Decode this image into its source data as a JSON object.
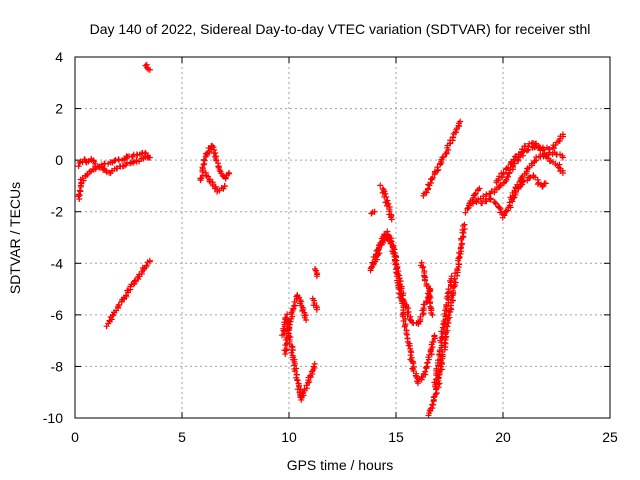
{
  "chart_data": {
    "type": "scatter",
    "title": "Day 140 of 2022, Sidereal Day-to-day VTEC variation (SDTVAR) for receiver sthl",
    "xlabel": "GPS time / hours",
    "ylabel": "SDTVAR / TECUs",
    "xlim": [
      0,
      25
    ],
    "ylim": [
      -10,
      4
    ],
    "xticks": [
      "0",
      "5",
      "10",
      "15",
      "20",
      "25"
    ],
    "yticks": [
      "-10",
      "-8",
      "-6",
      "-4",
      "-2",
      "0",
      "2",
      "4"
    ],
    "grid": true,
    "marker": "+",
    "marker_color": "#ff0000",
    "segments": [
      {
        "points": [
          [
            0.2,
            -1.5
          ],
          [
            0.3,
            -0.8
          ],
          [
            0.5,
            -0.6
          ],
          [
            0.8,
            -0.4
          ],
          [
            1.0,
            -0.3
          ],
          [
            1.3,
            -0.2
          ],
          [
            1.6,
            -0.1
          ],
          [
            2.0,
            0.0
          ],
          [
            2.4,
            0.1
          ],
          [
            2.8,
            0.2
          ],
          [
            3.2,
            0.3
          ],
          [
            3.5,
            0.1
          ]
        ]
      },
      {
        "points": [
          [
            0.2,
            -0.2
          ],
          [
            0.4,
            0.0
          ],
          [
            0.6,
            -0.1
          ],
          [
            0.8,
            0.0
          ],
          [
            1.0,
            -0.2
          ],
          [
            1.3,
            -0.3
          ],
          [
            1.6,
            -0.5
          ],
          [
            1.9,
            -0.3
          ],
          [
            2.2,
            -0.2
          ],
          [
            2.6,
            -0.1
          ],
          [
            3.0,
            0.0
          ],
          [
            3.4,
            0.1
          ]
        ]
      },
      {
        "points": [
          [
            3.3,
            3.7
          ],
          [
            3.5,
            3.5
          ]
        ]
      },
      {
        "points": [
          [
            1.5,
            -6.4
          ],
          [
            1.8,
            -6.0
          ],
          [
            2.1,
            -5.6
          ],
          [
            2.4,
            -5.2
          ],
          [
            2.7,
            -4.8
          ],
          [
            3.0,
            -4.5
          ],
          [
            3.3,
            -4.1
          ],
          [
            3.5,
            -3.9
          ]
        ]
      },
      {
        "points": [
          [
            5.9,
            -0.8
          ],
          [
            6.0,
            -0.2
          ],
          [
            6.2,
            0.3
          ],
          [
            6.4,
            0.6
          ],
          [
            6.6,
            0.1
          ],
          [
            6.8,
            -0.4
          ],
          [
            7.0,
            -0.7
          ],
          [
            7.2,
            -0.5
          ]
        ]
      },
      {
        "points": [
          [
            6.1,
            -0.5
          ],
          [
            6.4,
            -0.9
          ],
          [
            6.7,
            -1.2
          ],
          [
            7.0,
            -1.0
          ]
        ]
      },
      {
        "points": [
          [
            9.7,
            -6.8
          ],
          [
            9.9,
            -6.0
          ],
          [
            10.1,
            -7.2
          ],
          [
            10.3,
            -8.2
          ],
          [
            10.5,
            -9.0
          ],
          [
            10.6,
            -9.3
          ],
          [
            10.8,
            -8.8
          ],
          [
            11.0,
            -8.4
          ],
          [
            11.2,
            -7.9
          ]
        ]
      },
      {
        "points": [
          [
            9.8,
            -7.5
          ],
          [
            10.0,
            -6.5
          ],
          [
            10.2,
            -5.8
          ],
          [
            10.4,
            -5.2
          ],
          [
            10.6,
            -5.6
          ],
          [
            10.8,
            -6.2
          ]
        ]
      },
      {
        "points": [
          [
            11.2,
            -4.2
          ],
          [
            11.3,
            -4.5
          ]
        ]
      },
      {
        "points": [
          [
            11.1,
            -5.4
          ],
          [
            11.3,
            -5.8
          ]
        ]
      },
      {
        "points": [
          [
            13.8,
            -4.3
          ],
          [
            14.0,
            -3.8
          ],
          [
            14.2,
            -3.4
          ],
          [
            14.4,
            -3.0
          ],
          [
            14.6,
            -2.8
          ],
          [
            14.8,
            -3.2
          ],
          [
            15.0,
            -4.0
          ],
          [
            15.2,
            -4.8
          ],
          [
            15.4,
            -5.5
          ],
          [
            15.6,
            -6.0
          ],
          [
            15.8,
            -6.3
          ],
          [
            16.0,
            -6.4
          ],
          [
            16.2,
            -6.0
          ],
          [
            16.4,
            -5.5
          ],
          [
            16.6,
            -5.0
          ]
        ]
      },
      {
        "points": [
          [
            14.0,
            -4.0
          ],
          [
            14.3,
            -3.3
          ],
          [
            14.6,
            -2.9
          ],
          [
            14.9,
            -3.5
          ],
          [
            15.2,
            -5.2
          ],
          [
            15.5,
            -6.8
          ],
          [
            15.8,
            -8.0
          ],
          [
            16.0,
            -8.6
          ],
          [
            16.3,
            -8.4
          ],
          [
            16.6,
            -7.6
          ],
          [
            16.8,
            -6.8
          ]
        ]
      },
      {
        "points": [
          [
            13.9,
            -2.1
          ],
          [
            14.0,
            -2.0
          ]
        ]
      },
      {
        "points": [
          [
            14.3,
            -1.0
          ],
          [
            14.5,
            -1.4
          ],
          [
            14.7,
            -2.0
          ],
          [
            14.8,
            -2.3
          ]
        ]
      },
      {
        "points": [
          [
            16.2,
            -4.0
          ],
          [
            16.5,
            -5.0
          ],
          [
            16.7,
            -6.0
          ]
        ]
      },
      {
        "points": [
          [
            16.5,
            -9.9
          ],
          [
            16.7,
            -9.5
          ],
          [
            16.9,
            -9.0
          ],
          [
            17.1,
            -8.0
          ],
          [
            17.3,
            -7.0
          ],
          [
            17.5,
            -6.0
          ],
          [
            17.7,
            -5.0
          ],
          [
            17.9,
            -4.0
          ],
          [
            18.1,
            -3.0
          ],
          [
            18.2,
            -2.5
          ]
        ]
      },
      {
        "points": [
          [
            16.8,
            -8.8
          ],
          [
            17.0,
            -7.8
          ],
          [
            17.2,
            -6.5
          ],
          [
            17.4,
            -5.5
          ],
          [
            17.6,
            -4.5
          ]
        ]
      },
      {
        "points": [
          [
            16.3,
            -1.4
          ],
          [
            16.6,
            -0.9
          ],
          [
            16.9,
            -0.4
          ],
          [
            17.2,
            0.1
          ],
          [
            17.5,
            0.6
          ],
          [
            17.8,
            1.1
          ],
          [
            18.0,
            1.5
          ]
        ]
      },
      {
        "points": [
          [
            18.4,
            -1.7
          ],
          [
            18.8,
            -1.6
          ],
          [
            19.2,
            -1.4
          ],
          [
            19.6,
            -1.2
          ],
          [
            20.0,
            -0.9
          ],
          [
            20.3,
            -0.5
          ],
          [
            20.6,
            -0.1
          ],
          [
            21.0,
            0.3
          ],
          [
            21.4,
            0.5
          ],
          [
            21.8,
            0.5
          ],
          [
            22.2,
            0.4
          ],
          [
            22.6,
            0.7
          ],
          [
            22.8,
            1.0
          ]
        ]
      },
      {
        "points": [
          [
            19.0,
            -1.7
          ],
          [
            19.4,
            -1.5
          ],
          [
            19.8,
            -1.8
          ],
          [
            20.0,
            -2.2
          ],
          [
            20.3,
            -1.8
          ],
          [
            20.6,
            -1.2
          ],
          [
            21.0,
            -0.8
          ],
          [
            21.4,
            -0.6
          ],
          [
            21.8,
            -1.0
          ],
          [
            22.0,
            -0.9
          ]
        ]
      },
      {
        "points": [
          [
            19.7,
            -0.9
          ],
          [
            20.0,
            -0.5
          ],
          [
            20.3,
            -0.2
          ],
          [
            20.6,
            0.1
          ],
          [
            21.0,
            0.5
          ],
          [
            21.4,
            0.7
          ],
          [
            21.8,
            0.4
          ],
          [
            22.2,
            0.0
          ],
          [
            22.6,
            -0.2
          ],
          [
            22.8,
            -0.5
          ]
        ]
      },
      {
        "points": [
          [
            18.3,
            -2.0
          ],
          [
            18.6,
            -1.4
          ],
          [
            18.9,
            -1.1
          ]
        ]
      },
      {
        "points": [
          [
            20.4,
            -1.4
          ],
          [
            20.8,
            -0.8
          ],
          [
            21.2,
            -0.3
          ],
          [
            21.6,
            0.1
          ],
          [
            22.0,
            0.2
          ],
          [
            22.4,
            0.3
          ],
          [
            22.8,
            0.1
          ]
        ]
      }
    ]
  }
}
